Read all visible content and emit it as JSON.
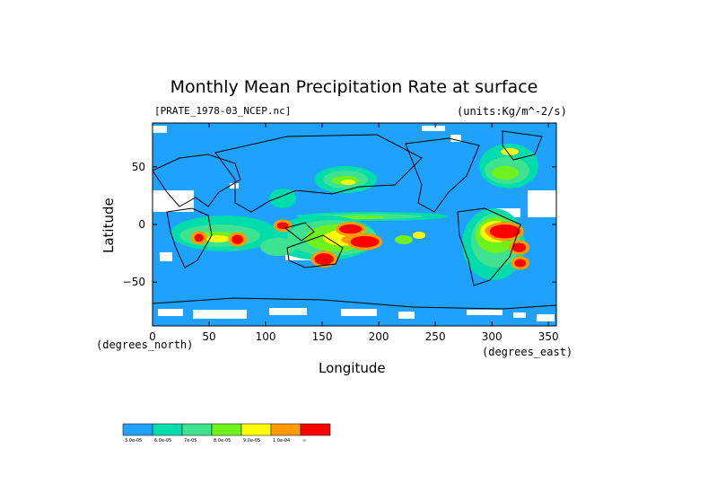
{
  "chart_data": {
    "type": "heatmap",
    "title": "Monthly Mean Precipitation Rate at surface",
    "file_label": "[PRATE_1978-03_NCEP.nc]",
    "units_label": "(units:Kg/m^-2/s)",
    "xlabel": "Longitude",
    "ylabel": "Latitude",
    "x_unit_label": "(degrees_east)",
    "y_unit_label": "(degrees_north)",
    "xlim": [
      0,
      357
    ],
    "ylim": [
      -88,
      88
    ],
    "x_ticks": [
      0,
      50,
      100,
      150,
      200,
      250,
      300,
      350
    ],
    "y_ticks": [
      50,
      0,
      -50
    ],
    "y_tick_labels": [
      "50",
      "0",
      "−50"
    ],
    "colorbar": {
      "colors": [
        "#1fa2ff",
        "#00dcab",
        "#3fe28f",
        "#6ff21b",
        "#ffff00",
        "#ff9a00",
        "#ff0000"
      ],
      "labels": [
        "3.0e-05",
        "6.0e-05",
        "7e-05",
        "8.0e-05",
        "9.0e-05",
        "1.0e-04",
        "∞"
      ]
    },
    "background_color": "#1fa2ff",
    "missing_color": "#ffffff",
    "high_regions": [
      {
        "lon": [
          165,
          185
        ],
        "lat": [
          -8,
          0
        ],
        "level": 6
      },
      {
        "lon": [
          175,
          200
        ],
        "lat": [
          -20,
          -10
        ],
        "level": 6
      },
      {
        "lon": [
          143,
          160
        ],
        "lat": [
          -35,
          -25
        ],
        "level": 6
      },
      {
        "lon": [
          110,
          120
        ],
        "lat": [
          -4,
          2
        ],
        "level": 6
      },
      {
        "lon": [
          70,
          80
        ],
        "lat": [
          -17,
          -9
        ],
        "level": 6
      },
      {
        "lon": [
          298,
          325
        ],
        "lat": [
          -12,
          0
        ],
        "level": 6
      },
      {
        "lon": [
          318,
          330
        ],
        "lat": [
          -24,
          -16
        ],
        "level": 6
      },
      {
        "lon": [
          320,
          330
        ],
        "lat": [
          -37,
          -30
        ],
        "level": 6
      },
      {
        "lon": [
          37,
          45
        ],
        "lat": [
          -15,
          -8
        ],
        "level": 6
      }
    ]
  }
}
